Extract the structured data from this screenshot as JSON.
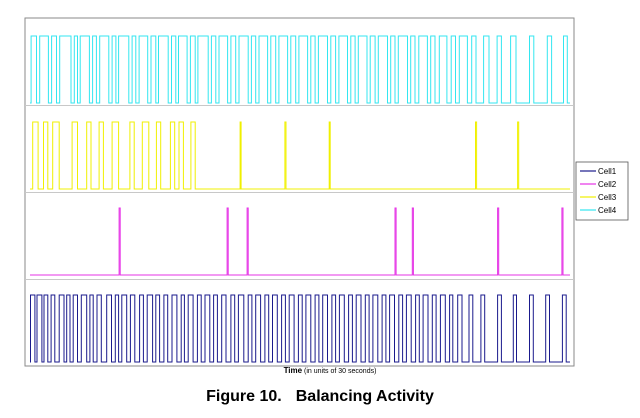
{
  "figure": {
    "caption_number": "Figure 10.",
    "caption_title": "Balancing Activity"
  },
  "chart_data": {
    "type": "line",
    "style": "digital on/off timing traces, one panel per cell",
    "xlabel": "Time",
    "xlabel_note": "(in units of 30 seconds)",
    "ylabel": "",
    "grid": false,
    "legend_position": "right",
    "x_range": [
      0,
      100
    ],
    "series": [
      {
        "name": "Cell4",
        "color": "#33e6f0",
        "state_levels": [
          0,
          1
        ],
        "baseline": 0,
        "pulses": [
          [
            0.2,
            1.2
          ],
          [
            1.8,
            3.4
          ],
          [
            4,
            4.9
          ],
          [
            5.5,
            7.6
          ],
          [
            8.2,
            8.8
          ],
          [
            9.3,
            11
          ],
          [
            11.6,
            12.3
          ],
          [
            12.9,
            14.6
          ],
          [
            15.2,
            15.9
          ],
          [
            16.4,
            18.3
          ],
          [
            18.9,
            19.6
          ],
          [
            20.2,
            21.8
          ],
          [
            22.4,
            23.3
          ],
          [
            23.8,
            25.6
          ],
          [
            26.2,
            27
          ],
          [
            27.5,
            29.1
          ],
          [
            29.7,
            30.6
          ],
          [
            31.1,
            33
          ],
          [
            33.6,
            34.4
          ],
          [
            35,
            36.6
          ],
          [
            37.2,
            38.1
          ],
          [
            38.7,
            40.4
          ],
          [
            41,
            41.8
          ],
          [
            42.4,
            44
          ],
          [
            44.6,
            45.5
          ],
          [
            46.1,
            47.7
          ],
          [
            48.3,
            49.2
          ],
          [
            49.8,
            51.4
          ],
          [
            52,
            52.8
          ],
          [
            53.4,
            55.1
          ],
          [
            55.7,
            56.6
          ],
          [
            57.2,
            58.8
          ],
          [
            59.4,
            60.2
          ],
          [
            60.8,
            62.4
          ],
          [
            63,
            63.9
          ],
          [
            64.5,
            66.2
          ],
          [
            66.8,
            67.6
          ],
          [
            68.2,
            69.9
          ],
          [
            70.5,
            71.3
          ],
          [
            72,
            73.6
          ],
          [
            74.2,
            75
          ],
          [
            75.8,
            77.2
          ],
          [
            78,
            78.8
          ],
          [
            79.5,
            81
          ],
          [
            81.8,
            82.6
          ],
          [
            84,
            85
          ],
          [
            86.5,
            87.3
          ],
          [
            89,
            90
          ],
          [
            92.5,
            93.3
          ],
          [
            95.8,
            96.6
          ],
          [
            98.8,
            99.5
          ]
        ]
      },
      {
        "name": "Cell3",
        "color": "#f0f000",
        "state_levels": [
          0,
          1
        ],
        "baseline": 0,
        "pulses": [
          [
            0.5,
            1.5
          ],
          [
            2.5,
            3.3
          ],
          [
            4.2,
            5.4
          ],
          [
            7.8,
            8.8
          ],
          [
            10.5,
            11.3
          ],
          [
            12.8,
            13.6
          ],
          [
            15.2,
            16.4
          ],
          [
            18.5,
            19.3
          ],
          [
            20.8,
            22
          ],
          [
            23.4,
            24.2
          ],
          [
            26,
            26.8
          ],
          [
            27.6,
            28.4
          ],
          [
            29.8,
            30.6
          ],
          [
            38.9,
            39.1
          ],
          [
            47.2,
            47.4
          ],
          [
            55.4,
            55.6
          ],
          [
            82.5,
            82.7
          ],
          [
            90.3,
            90.5
          ]
        ]
      },
      {
        "name": "Cell2",
        "color": "#e633e6",
        "state_levels": [
          0,
          1
        ],
        "baseline": 0,
        "pulses": [
          [
            16.5,
            16.7
          ],
          [
            36.5,
            36.7
          ],
          [
            40.2,
            40.4
          ],
          [
            67.6,
            67.8
          ],
          [
            70.8,
            71
          ],
          [
            86.6,
            86.8
          ],
          [
            98.5,
            98.7
          ]
        ]
      },
      {
        "name": "Cell1",
        "color": "#1a1a8c",
        "state_levels": [
          0,
          1
        ],
        "baseline": 0,
        "pulses": [
          [
            0.1,
            0.9
          ],
          [
            1.3,
            2.2
          ],
          [
            2.6,
            3.3
          ],
          [
            3.9,
            4.6
          ],
          [
            5.4,
            6.3
          ],
          [
            6.8,
            7.4
          ],
          [
            8,
            8.8
          ],
          [
            9.5,
            10.5
          ],
          [
            11.1,
            11.7
          ],
          [
            12.4,
            13.2
          ],
          [
            14.2,
            15.1
          ],
          [
            15.8,
            16.4
          ],
          [
            17,
            17.9
          ],
          [
            18.6,
            19.4
          ],
          [
            20.3,
            21
          ],
          [
            21.7,
            22.7
          ],
          [
            23.3,
            24
          ],
          [
            24.8,
            25.5
          ],
          [
            26.3,
            27.2
          ],
          [
            28,
            28.6
          ],
          [
            29.3,
            30.2
          ],
          [
            31,
            31.7
          ],
          [
            32.4,
            33.3
          ],
          [
            34,
            34.7
          ],
          [
            35.5,
            36.3
          ],
          [
            37.2,
            37.9
          ],
          [
            38.6,
            39.6
          ],
          [
            40.4,
            41.1
          ],
          [
            41.8,
            42.7
          ],
          [
            43.5,
            44.2
          ],
          [
            44.9,
            45.8
          ],
          [
            46.6,
            47.3
          ],
          [
            48,
            48.9
          ],
          [
            49.7,
            50.4
          ],
          [
            51.1,
            52
          ],
          [
            52.8,
            53.5
          ],
          [
            54.2,
            55.1
          ],
          [
            55.9,
            56.6
          ],
          [
            57.3,
            58.2
          ],
          [
            59,
            59.7
          ],
          [
            60.4,
            61.3
          ],
          [
            62.1,
            62.8
          ],
          [
            63.5,
            64.4
          ],
          [
            65.2,
            65.9
          ],
          [
            66.6,
            67.5
          ],
          [
            68.3,
            69
          ],
          [
            69.7,
            70.6
          ],
          [
            71.4,
            72.1
          ],
          [
            72.8,
            73.7
          ],
          [
            74.5,
            75.2
          ],
          [
            76,
            76.9
          ],
          [
            77.7,
            78.3
          ],
          [
            79.2,
            80
          ],
          [
            81.3,
            82
          ],
          [
            83.5,
            84.2
          ],
          [
            86.6,
            87.3
          ],
          [
            89.5,
            90.1
          ],
          [
            92.5,
            93.2
          ],
          [
            95.5,
            96.2
          ],
          [
            98.6,
            99.3
          ]
        ]
      }
    ]
  }
}
